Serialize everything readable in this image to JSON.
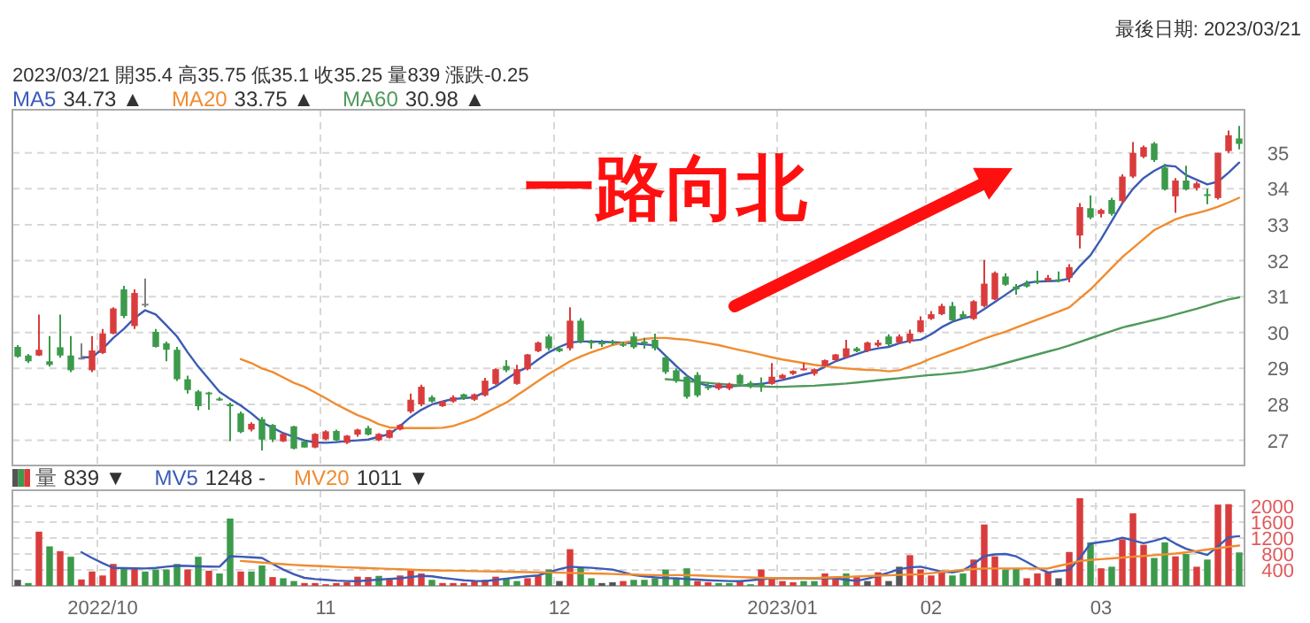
{
  "chart_data": [
    {
      "type": "candlestick",
      "title": "最後日期: 2023/03/21",
      "categories": [
        null,
        null,
        null,
        null,
        null,
        null,
        null,
        null,
        "2022/10",
        null,
        null,
        null,
        null,
        null,
        null,
        null,
        null,
        null,
        null,
        null,
        null,
        null,
        null,
        null,
        null,
        null,
        null,
        null,
        null,
        "11",
        null,
        null,
        null,
        null,
        null,
        null,
        null,
        null,
        null,
        null,
        null,
        null,
        null,
        null,
        null,
        null,
        null,
        null,
        null,
        null,
        null,
        "12",
        null,
        null,
        null,
        null,
        null,
        null,
        null,
        null,
        null,
        null,
        null,
        null,
        null,
        null,
        null,
        null,
        null,
        null,
        null,
        null,
        "2023/01",
        null,
        null,
        null,
        null,
        null,
        null,
        null,
        null,
        null,
        null,
        null,
        null,
        null,
        "02",
        null,
        null,
        null,
        null,
        null,
        null,
        null,
        null,
        null,
        null,
        null,
        null,
        null,
        null,
        null,
        "03",
        null,
        null,
        null,
        null,
        null,
        null,
        null,
        null,
        null,
        null,
        null,
        null,
        null
      ],
      "ohlc": [
        [
          29.6,
          29.65,
          29.3,
          29.33
        ],
        [
          29.36,
          29.4,
          29.15,
          29.2
        ],
        [
          29.36,
          30.5,
          29.35,
          29.52
        ],
        [
          29.2,
          29.9,
          29.05,
          29.1
        ],
        [
          29.59,
          30.5,
          29.3,
          29.36
        ],
        [
          29.36,
          29.9,
          28.9,
          28.95
        ],
        [
          29.3,
          29.7,
          29.25,
          29.3
        ],
        [
          28.95,
          29.9,
          28.9,
          29.5
        ],
        [
          29.43,
          30.1,
          29.4,
          29.97
        ],
        [
          29.97,
          30.7,
          29.95,
          30.67
        ],
        [
          31.2,
          31.3,
          30.4,
          30.46
        ],
        [
          30.18,
          31.2,
          30.1,
          31.1
        ],
        [
          30.8,
          31.5,
          30.7,
          30.8
        ],
        [
          30.02,
          30.1,
          29.58,
          29.6
        ],
        [
          29.7,
          29.75,
          29.2,
          29.52
        ],
        [
          29.52,
          29.6,
          28.65,
          28.7
        ],
        [
          28.7,
          28.8,
          28.3,
          28.4
        ],
        [
          28.36,
          28.4,
          27.84,
          27.95
        ],
        [
          28.33,
          28.35,
          27.85,
          28.3
        ],
        [
          28.16,
          28.2,
          28.1,
          28.15
        ],
        [
          28.0,
          28.05,
          26.98,
          27.98
        ],
        [
          27.75,
          27.8,
          27.2,
          27.23
        ],
        [
          27.3,
          27.5,
          27.25,
          27.46
        ],
        [
          27.59,
          27.65,
          26.72,
          27.02
        ],
        [
          27.43,
          27.45,
          26.95,
          27.02
        ],
        [
          26.97,
          27.2,
          26.95,
          27.18
        ],
        [
          27.39,
          27.4,
          26.75,
          26.77
        ],
        [
          26.97,
          26.98,
          26.8,
          26.8
        ],
        [
          26.8,
          27.2,
          26.78,
          27.18
        ],
        [
          27.03,
          27.28,
          27.0,
          27.25
        ],
        [
          27.26,
          27.3,
          26.98,
          27.0
        ],
        [
          26.93,
          27.15,
          26.9,
          27.13
        ],
        [
          27.16,
          27.32,
          27.1,
          27.3
        ],
        [
          27.34,
          27.4,
          27.14,
          27.16
        ],
        [
          27.0,
          27.2,
          26.98,
          27.18
        ],
        [
          27.07,
          27.3,
          27.05,
          27.28
        ],
        [
          27.3,
          27.45,
          27.28,
          27.43
        ],
        [
          27.8,
          28.3,
          27.75,
          28.13
        ],
        [
          28.0,
          28.55,
          27.95,
          28.49
        ],
        [
          28.2,
          28.25,
          28.05,
          28.08
        ],
        [
          27.95,
          28.1,
          27.93,
          28.08
        ],
        [
          28.08,
          28.25,
          28.05,
          28.2
        ],
        [
          28.28,
          28.3,
          28.12,
          28.16
        ],
        [
          28.13,
          28.3,
          28.1,
          28.28
        ],
        [
          28.25,
          28.74,
          28.22,
          28.66
        ],
        [
          28.57,
          29.0,
          28.55,
          28.98
        ],
        [
          29.07,
          29.23,
          28.9,
          28.95
        ],
        [
          28.57,
          29.1,
          28.55,
          28.98
        ],
        [
          28.98,
          29.4,
          28.95,
          29.39
        ],
        [
          29.48,
          29.75,
          29.45,
          29.72
        ],
        [
          29.89,
          29.95,
          29.5,
          29.56
        ],
        [
          29.56,
          29.6,
          29.45,
          29.48
        ],
        [
          29.56,
          30.7,
          29.5,
          30.33
        ],
        [
          30.33,
          30.4,
          29.7,
          29.75
        ],
        [
          29.75,
          29.8,
          29.55,
          29.74
        ],
        [
          29.72,
          29.8,
          29.6,
          29.7
        ],
        [
          29.75,
          29.8,
          29.65,
          29.73
        ],
        [
          29.68,
          29.75,
          29.6,
          29.66
        ],
        [
          29.89,
          30.0,
          29.55,
          29.59
        ],
        [
          29.75,
          29.85,
          29.55,
          29.72
        ],
        [
          29.8,
          29.97,
          29.5,
          29.56
        ],
        [
          29.31,
          29.35,
          28.85,
          28.9
        ],
        [
          28.95,
          29.0,
          28.6,
          28.65
        ],
        [
          28.77,
          28.8,
          28.16,
          28.21
        ],
        [
          28.82,
          28.9,
          28.2,
          28.25
        ],
        [
          28.5,
          28.6,
          28.4,
          28.45
        ],
        [
          28.44,
          28.6,
          28.4,
          28.57
        ],
        [
          28.44,
          28.6,
          28.4,
          28.57
        ],
        [
          28.82,
          28.85,
          28.5,
          28.57
        ],
        [
          28.6,
          28.65,
          28.45,
          28.5
        ],
        [
          28.57,
          28.75,
          28.35,
          28.55
        ],
        [
          28.57,
          29.15,
          28.55,
          28.77
        ],
        [
          28.72,
          28.85,
          28.7,
          28.82
        ],
        [
          28.85,
          28.95,
          28.82,
          28.93
        ],
        [
          28.98,
          29.15,
          28.95,
          29.0
        ],
        [
          28.85,
          29.0,
          28.8,
          28.98
        ],
        [
          29.07,
          29.25,
          29.05,
          29.23
        ],
        [
          29.23,
          29.4,
          29.2,
          29.39
        ],
        [
          29.31,
          29.8,
          29.3,
          29.56
        ],
        [
          29.56,
          29.6,
          29.45,
          29.48
        ],
        [
          29.5,
          29.75,
          29.45,
          29.72
        ],
        [
          29.64,
          29.8,
          29.6,
          29.72
        ],
        [
          29.89,
          29.95,
          29.62,
          29.67
        ],
        [
          29.72,
          29.95,
          29.7,
          29.89
        ],
        [
          29.75,
          30.08,
          29.7,
          29.97
        ],
        [
          30.02,
          30.45,
          30.0,
          30.34
        ],
        [
          30.38,
          30.6,
          30.35,
          30.51
        ],
        [
          30.51,
          30.8,
          30.48,
          30.74
        ],
        [
          30.74,
          30.85,
          30.3,
          30.34
        ],
        [
          30.51,
          30.6,
          30.4,
          30.41
        ],
        [
          30.38,
          30.9,
          30.35,
          30.87
        ],
        [
          30.74,
          32.02,
          30.7,
          31.36
        ],
        [
          30.92,
          31.7,
          30.9,
          31.66
        ],
        [
          31.56,
          31.65,
          31.3,
          31.33
        ],
        [
          31.28,
          31.35,
          31.05,
          31.2
        ],
        [
          31.36,
          31.45,
          31.25,
          31.28
        ],
        [
          31.44,
          31.72,
          31.35,
          31.42
        ],
        [
          31.44,
          31.6,
          31.4,
          31.52
        ],
        [
          31.48,
          31.7,
          31.4,
          31.46
        ],
        [
          31.52,
          31.9,
          31.4,
          31.82
        ],
        [
          32.7,
          33.6,
          32.34,
          33.49
        ],
        [
          33.46,
          33.82,
          33.15,
          33.2
        ],
        [
          33.3,
          33.45,
          33.2,
          33.41
        ],
        [
          33.69,
          33.75,
          33.25,
          33.3
        ],
        [
          33.66,
          34.4,
          33.6,
          34.34
        ],
        [
          34.34,
          35.3,
          34.3,
          35.0
        ],
        [
          34.89,
          35.2,
          34.85,
          35.16
        ],
        [
          35.26,
          35.3,
          34.75,
          34.8
        ],
        [
          34.59,
          34.7,
          33.95,
          33.98
        ],
        [
          33.79,
          34.3,
          33.33,
          34.23
        ],
        [
          34.23,
          34.64,
          33.95,
          33.98
        ],
        [
          34.02,
          34.2,
          33.95,
          34.15
        ],
        [
          33.85,
          34.0,
          33.57,
          33.82
        ],
        [
          33.74,
          35.0,
          33.7,
          35.0
        ],
        [
          35.05,
          35.62,
          35.0,
          35.49
        ],
        [
          35.4,
          35.75,
          35.1,
          35.25
        ]
      ],
      "colors": [
        "#3c9a4b",
        "#3c9a4b",
        "#d93c3c",
        "#3c9a4b",
        "#3c9a4b",
        "#3c9a4b",
        "#808080",
        "#d93c3c",
        "#d93c3c",
        "#d93c3c",
        "#3c9a4b",
        "#d93c3c",
        "#808080",
        "#3c9a4b",
        "#3c9a4b",
        "#3c9a4b",
        "#3c9a4b",
        "#3c9a4b",
        "#3c9a4b",
        "#3c9a4b",
        "#3c9a4b",
        "#3c9a4b",
        "#d93c3c",
        "#3c9a4b",
        "#3c9a4b",
        "#d93c3c",
        "#3c9a4b",
        "#3c9a4b",
        "#d93c3c",
        "#d93c3c",
        "#3c9a4b",
        "#d93c3c",
        "#d93c3c",
        "#3c9a4b",
        "#d93c3c",
        "#d93c3c",
        "#d93c3c",
        "#d93c3c",
        "#d93c3c",
        "#3c9a4b",
        "#d93c3c",
        "#d93c3c",
        "#3c9a4b",
        "#d93c3c",
        "#d93c3c",
        "#d93c3c",
        "#3c9a4b",
        "#d93c3c",
        "#d93c3c",
        "#d93c3c",
        "#3c9a4b",
        "#3c9a4b",
        "#d93c3c",
        "#3c9a4b",
        "#3c9a4b",
        "#3c9a4b",
        "#3c9a4b",
        "#3c9a4b",
        "#3c9a4b",
        "#3c9a4b",
        "#3c9a4b",
        "#3c9a4b",
        "#3c9a4b",
        "#3c9a4b",
        "#3c9a4b",
        "#3c9a4b",
        "#d93c3c",
        "#d93c3c",
        "#3c9a4b",
        "#3c9a4b",
        "#3c9a4b",
        "#d93c3c",
        "#d93c3c",
        "#d93c3c",
        "#d93c3c",
        "#d93c3c",
        "#d93c3c",
        "#d93c3c",
        "#d93c3c",
        "#3c9a4b",
        "#d93c3c",
        "#d93c3c",
        "#3c9a4b",
        "#d93c3c",
        "#d93c3c",
        "#d93c3c",
        "#d93c3c",
        "#d93c3c",
        "#3c9a4b",
        "#3c9a4b",
        "#d93c3c",
        "#d93c3c",
        "#d93c3c",
        "#3c9a4b",
        "#3c9a4b",
        "#3c9a4b",
        "#3c9a4b",
        "#d93c3c",
        "#3c9a4b",
        "#d93c3c",
        "#d93c3c",
        "#3c9a4b",
        "#d93c3c",
        "#3c9a4b",
        "#d93c3c",
        "#d93c3c",
        "#d93c3c",
        "#3c9a4b",
        "#3c9a4b",
        "#d93c3c",
        "#3c9a4b",
        "#d93c3c",
        "#3c9a4b",
        "#d93c3c",
        "#d93c3c",
        "#3c9a4b"
      ],
      "series": [
        {
          "name": "MA5",
          "type": "line",
          "color": "#3b5bb5",
          "values": [
            null,
            null,
            null,
            null,
            null,
            null,
            29.31,
            29.31,
            29.55,
            29.85,
            30.1,
            30.4,
            30.62,
            30.5,
            30.2,
            29.89,
            29.45,
            29.05,
            28.7,
            28.35,
            28.15,
            27.97,
            27.75,
            27.5,
            27.35,
            27.2,
            27.1,
            27.0,
            26.94,
            26.93,
            26.95,
            26.98,
            27.0,
            27.02,
            27.1,
            27.17,
            27.4,
            27.65,
            27.85,
            28.0,
            28.08,
            28.15,
            28.17,
            28.2,
            28.35,
            28.5,
            28.7,
            28.9,
            29.03,
            29.25,
            29.45,
            29.6,
            29.72,
            29.75,
            29.75,
            29.74,
            29.73,
            29.72,
            29.7,
            29.67,
            29.64,
            29.35,
            29.07,
            28.8,
            28.6,
            28.52,
            28.49,
            28.5,
            28.52,
            28.55,
            28.57,
            28.62,
            28.68,
            28.75,
            28.83,
            28.9,
            29.05,
            29.2,
            29.3,
            29.4,
            29.5,
            29.56,
            29.6,
            29.7,
            29.77,
            29.8,
            29.95,
            30.15,
            30.3,
            30.4,
            30.46,
            30.65,
            30.85,
            31.05,
            31.25,
            31.38,
            31.42,
            31.43,
            31.44,
            31.5,
            31.85,
            32.15,
            32.6,
            33.1,
            33.6,
            34.0,
            34.3,
            34.5,
            34.65,
            34.62,
            34.38,
            34.25,
            34.12,
            34.2,
            34.45,
            34.73
          ]
        },
        {
          "name": "MA20",
          "type": "line",
          "color": "#f08c30",
          "values": [
            null,
            null,
            null,
            null,
            null,
            null,
            null,
            null,
            null,
            null,
            null,
            null,
            null,
            null,
            null,
            null,
            null,
            null,
            null,
            null,
            null,
            29.26,
            29.15,
            29.0,
            28.9,
            28.75,
            28.6,
            28.49,
            28.33,
            28.17,
            28.0,
            27.85,
            27.7,
            27.59,
            27.45,
            27.36,
            27.34,
            27.34,
            27.34,
            27.34,
            27.35,
            27.4,
            27.5,
            27.6,
            27.75,
            27.9,
            28.05,
            28.25,
            28.45,
            28.65,
            28.85,
            29.02,
            29.2,
            29.33,
            29.45,
            29.55,
            29.65,
            29.72,
            29.77,
            29.82,
            29.85,
            29.85,
            29.82,
            29.8,
            29.75,
            29.7,
            29.65,
            29.58,
            29.51,
            29.45,
            29.38,
            29.31,
            29.25,
            29.2,
            29.15,
            29.1,
            29.06,
            29.03,
            29.0,
            28.98,
            28.96,
            28.95,
            28.92,
            28.95,
            29.05,
            29.15,
            29.28,
            29.39,
            29.5,
            29.6,
            29.72,
            29.83,
            29.93,
            30.02,
            30.14,
            30.25,
            30.36,
            30.47,
            30.58,
            30.7,
            30.95,
            31.2,
            31.5,
            31.8,
            32.1,
            32.35,
            32.6,
            32.85,
            33.0,
            33.15,
            33.25,
            33.32,
            33.4,
            33.5,
            33.62,
            33.75
          ]
        },
        {
          "name": "MA60",
          "type": "line",
          "color": "#4f9a5a",
          "values": [
            null,
            null,
            null,
            null,
            null,
            null,
            null,
            null,
            null,
            null,
            null,
            null,
            null,
            null,
            null,
            null,
            null,
            null,
            null,
            null,
            null,
            null,
            null,
            null,
            null,
            null,
            null,
            null,
            null,
            null,
            null,
            null,
            null,
            null,
            null,
            null,
            null,
            null,
            null,
            null,
            null,
            null,
            null,
            null,
            null,
            null,
            null,
            null,
            null,
            null,
            null,
            null,
            null,
            null,
            null,
            null,
            null,
            null,
            null,
            null,
            null,
            28.7,
            28.68,
            28.65,
            28.62,
            28.6,
            28.57,
            28.55,
            28.53,
            28.51,
            28.5,
            28.49,
            28.49,
            28.5,
            28.51,
            28.52,
            28.54,
            28.56,
            28.58,
            28.61,
            28.64,
            28.67,
            28.7,
            28.73,
            28.76,
            28.79,
            28.82,
            28.84,
            28.87,
            28.9,
            28.95,
            29.0,
            29.07,
            29.15,
            29.23,
            29.31,
            29.39,
            29.47,
            29.55,
            29.64,
            29.74,
            29.84,
            29.94,
            30.04,
            30.14,
            30.21,
            30.28,
            30.35,
            30.42,
            30.5,
            30.58,
            30.66,
            30.75,
            30.84,
            30.92,
            30.98
          ]
        }
      ],
      "ylim": [
        26.3,
        36.2
      ],
      "yticks": [
        27,
        28,
        29,
        30,
        31,
        32,
        33,
        34,
        35
      ],
      "grid": true,
      "legend": "top left",
      "tick_labels": "y",
      "annotations": [
        "34.73 ▲",
        "33.75 ▲",
        "30.98 ▲",
        "2023/03/21 開35.4 高35.75 低35.1 收35.25 量839 漲跌-0.25",
        "一路向北"
      ]
    },
    {
      "type": "bar",
      "categories": [
        null,
        null,
        null,
        null,
        null,
        null,
        null,
        null,
        "2022/10",
        null,
        null,
        null,
        null,
        null,
        null,
        null,
        null,
        null,
        null,
        null,
        null,
        null,
        null,
        null,
        null,
        null,
        null,
        null,
        null,
        "11",
        null,
        null,
        null,
        null,
        null,
        null,
        null,
        null,
        null,
        null,
        null,
        null,
        null,
        null,
        null,
        null,
        null,
        null,
        null,
        null,
        null,
        "12",
        null,
        null,
        null,
        null,
        null,
        null,
        null,
        null,
        null,
        null,
        null,
        null,
        null,
        null,
        null,
        null,
        null,
        null,
        null,
        null,
        "2023/01",
        null,
        null,
        null,
        null,
        null,
        null,
        null,
        null,
        null,
        null,
        null,
        null,
        null,
        "02",
        null,
        null,
        null,
        null,
        null,
        null,
        null,
        null,
        null,
        null,
        null,
        null,
        null,
        null,
        null,
        "03",
        null,
        null,
        null,
        null,
        null,
        null,
        null,
        null,
        null,
        null,
        null,
        null,
        null
      ],
      "series": [
        {
          "name": "量",
          "type": "bar",
          "colors": [
            "#555555",
            "#3c9a4b",
            "#d93c3c",
            "#3c9a4b",
            "#d93c3c",
            "#3c9a4b",
            "#d93c3c",
            "#d93c3c",
            "#d93c3c",
            "#d93c3c",
            "#3c9a4b",
            "#d93c3c",
            "#3c9a4b",
            "#3c9a4b",
            "#3c9a4b",
            "#3c9a4b",
            "#d93c3c",
            "#3c9a4b",
            "#d93c3c",
            "#3c9a4b",
            "#3c9a4b",
            "#d93c3c",
            "#3c9a4b",
            "#3c9a4b",
            "#d93c3c",
            "#3c9a4b",
            "#3c9a4b",
            "#d93c3c",
            "#d93c3c",
            "#d93c3c",
            "#d93c3c",
            "#d93c3c",
            "#d93c3c",
            "#d93c3c",
            "#3c9a4b",
            "#d93c3c",
            "#d93c3c",
            "#d93c3c",
            "#d93c3c",
            "#3c9a4b",
            "#d93c3c",
            "#d93c3c",
            "#d93c3c",
            "#d93c3c",
            "#d93c3c",
            "#d93c3c",
            "#3c9a4b",
            "#3c9a4b",
            "#d93c3c",
            "#d93c3c",
            "#3c9a4b",
            "#555555",
            "#d93c3c",
            "#3c9a4b",
            "#3c9a4b",
            "#555555",
            "#555555",
            "#d93c3c",
            "#3c9a4b",
            "#3c9a4b",
            "#3c9a4b",
            "#3c9a4b",
            "#3c9a4b",
            "#3c9a4b",
            "#d93c3c",
            "#d93c3c",
            "#3c9a4b",
            "#3c9a4b",
            "#d93c3c",
            "#3c9a4b",
            "#d93c3c",
            "#d93c3c",
            "#d93c3c",
            "#d93c3c",
            "#3c9a4b",
            "#3c9a4b",
            "#d93c3c",
            "#d93c3c",
            "#3c9a4b",
            "#d93c3c",
            "#555555",
            "#d93c3c",
            "#555555",
            "#555555",
            "#d93c3c",
            "#d93c3c",
            "#d93c3c",
            "#d93c3c",
            "#3c9a4b",
            "#3c9a4b",
            "#d93c3c",
            "#d93c3c",
            "#d93c3c",
            "#3c9a4b",
            "#3c9a4b",
            "#d93c3c",
            "#d93c3c",
            "#d93c3c",
            "#555555",
            "#d93c3c",
            "#d93c3c",
            "#3c9a4b",
            "#d93c3c",
            "#3c9a4b",
            "#d93c3c",
            "#d93c3c",
            "#d93c3c",
            "#3c9a4b",
            "#3c9a4b",
            "#d93c3c",
            "#3c9a4b",
            "#d93c3c",
            "#3c9a4b",
            "#d93c3c",
            "#d93c3c",
            "#3c9a4b"
          ],
          "values": [
            150,
            70,
            1360,
            990,
            870,
            730,
            160,
            360,
            260,
            550,
            440,
            450,
            360,
            410,
            410,
            550,
            410,
            730,
            380,
            310,
            1690,
            360,
            360,
            510,
            220,
            190,
            120,
            70,
            70,
            40,
            70,
            90,
            230,
            220,
            250,
            190,
            260,
            410,
            310,
            150,
            70,
            70,
            70,
            120,
            150,
            230,
            190,
            120,
            190,
            260,
            410,
            120,
            920,
            450,
            190,
            70,
            90,
            120,
            150,
            150,
            190,
            410,
            190,
            440,
            120,
            90,
            70,
            70,
            120,
            40,
            410,
            190,
            120,
            90,
            120,
            120,
            310,
            190,
            310,
            220,
            120,
            340,
            120,
            480,
            770,
            410,
            260,
            360,
            260,
            310,
            660,
            1540,
            740,
            410,
            440,
            190,
            310,
            340,
            190,
            850,
            2200,
            1090,
            440,
            480,
            1170,
            1820,
            1030,
            700,
            1090,
            740,
            800,
            480,
            660,
            2040,
            2050,
            839
          ]
        },
        {
          "name": "MV5",
          "type": "line",
          "color": "#3b5bb5",
          "values": [
            null,
            null,
            null,
            null,
            null,
            null,
            845,
            700,
            570,
            450,
            445,
            440,
            437,
            450,
            480,
            505,
            500,
            490,
            485,
            481,
            743,
            730,
            715,
            700,
            550,
            408,
            290,
            200,
            170,
            150,
            130,
            120,
            117,
            135,
            155,
            175,
            190,
            220,
            250,
            240,
            200,
            170,
            140,
            125,
            117,
            150,
            180,
            210,
            240,
            262,
            340,
            420,
            481,
            465,
            452,
            430,
            408,
            340,
            270,
            240,
            215,
            195,
            190,
            170,
            155,
            140,
            130,
            120,
            117,
            140,
            165,
            190,
            190,
            190,
            190,
            190,
            190,
            190,
            150,
            125,
            180,
            250,
            330,
            420,
            465,
            481,
            420,
            360,
            340,
            390,
            550,
            750,
            790,
            800,
            740,
            600,
            450,
            335,
            370,
            400,
            700,
            1060,
            1100,
            1136,
            1210,
            1140,
            1070,
            1130,
            1210,
            1060,
            930,
            850,
            775,
            990,
            1220,
            1248
          ]
        },
        {
          "name": "MV20",
          "type": "line",
          "color": "#f08c30",
          "values": [
            null,
            null,
            null,
            null,
            null,
            null,
            null,
            null,
            null,
            null,
            null,
            null,
            null,
            null,
            null,
            null,
            null,
            null,
            null,
            null,
            null,
            626,
            605,
            585,
            565,
            545,
            525,
            510,
            500,
            490,
            475,
            465,
            455,
            445,
            435,
            425,
            415,
            405,
            395,
            390,
            385,
            380,
            375,
            370,
            365,
            360,
            355,
            350,
            345,
            340,
            335,
            330,
            325,
            318,
            311,
            304,
            297,
            290,
            283,
            276,
            270,
            265,
            270,
            270,
            260,
            250,
            240,
            230,
            220,
            210,
            200,
            195,
            190,
            189,
            189,
            195,
            205,
            215,
            225,
            235,
            245,
            255,
            265,
            275,
            285,
            291,
            320,
            350,
            375,
            400,
            420,
            437,
            437,
            437,
            437,
            437,
            437,
            437,
            500,
            560,
            626,
            650,
            670,
            690,
            710,
            730,
            750,
            770,
            790,
            810,
            840,
            875,
            910,
            945,
            980,
            1011
          ]
        }
      ],
      "ylim": [
        0,
        2400
      ],
      "yticks": [
        400,
        800,
        1200,
        1600,
        2000
      ],
      "grid": true,
      "legend": "top left",
      "annotations": [
        "839 ▼",
        "1248 -",
        "1011 ▼"
      ]
    }
  ]
}
